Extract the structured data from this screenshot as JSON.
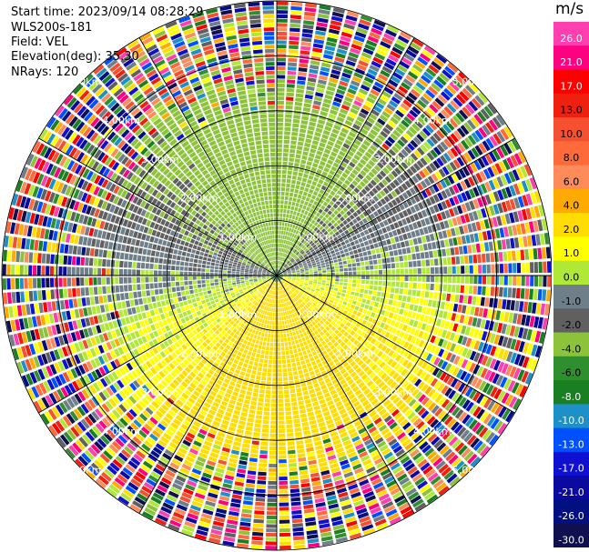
{
  "header": {
    "start_time": "Start time: 2023/09/14 08:28:29",
    "instrument": "WLS200s-181",
    "field": "Field: VEL",
    "elevation": "Elevation(deg): 35.30",
    "nrays": "NRays: 120"
  },
  "chart_data": {
    "type": "heatmap",
    "projection": "polar-ppi",
    "rays": 120,
    "range_rings_km": [
      1.0,
      2.0,
      3.0,
      4.0,
      5.0
    ],
    "ring_labels": [
      "1.00km",
      "2.00km",
      "3.00km",
      "4.00km",
      "5.00km"
    ],
    "max_range_km": 5.0,
    "spoke_step_deg": 30,
    "colorbar": {
      "unit": "m/s",
      "levels": [
        26.0,
        21.0,
        17.0,
        13.0,
        10.0,
        8.0,
        6.0,
        4.0,
        2.0,
        1.0,
        0.0,
        -1.0,
        -2.0,
        -4.0,
        -6.0,
        -8.0,
        -10.0,
        -13.0,
        -17.0,
        -21.0,
        -26.0,
        -30.0
      ],
      "tick_labels": [
        "26.0",
        "21.0",
        "17.0",
        "13.0",
        "10.0",
        "8.0",
        "6.0",
        "4.0",
        "2.0",
        "1.0",
        "0.0",
        "-1.0",
        "-2.0",
        "-4.0",
        "-6.0",
        "-8.0",
        "-10.0",
        "-13.0",
        "-17.0",
        "-21.0",
        "-26.0",
        "-30.0"
      ],
      "colors": [
        "#ff3fb0",
        "#ff0080",
        "#ff0000",
        "#f02010",
        "#f55030",
        "#ff6a3a",
        "#ff8a5a",
        "#ffaa00",
        "#ffdd00",
        "#ffff00",
        "#b0e838",
        "#6e7f8a",
        "#606060",
        "#8dc33a",
        "#2f8f2f",
        "#1a7f20",
        "#1e90c8",
        "#0050ff",
        "#1010d0",
        "#0a0aa0",
        "#001080",
        "#101050"
      ]
    }
  }
}
